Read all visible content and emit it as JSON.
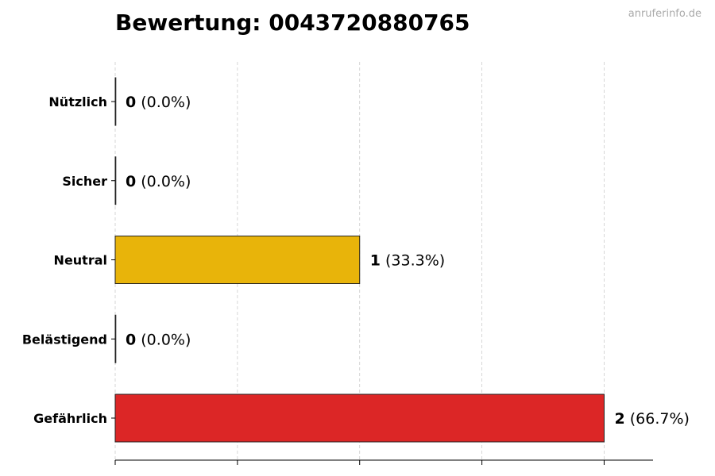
{
  "title": "Bewertung: 0043720880765",
  "watermark": "anruferinfo.de",
  "chart_data": {
    "type": "bar",
    "orientation": "horizontal",
    "title": "Bewertung: 0043720880765",
    "xlabel": "",
    "ylabel": "",
    "categories": [
      "Nützlich",
      "Sicher",
      "Neutral",
      "Belästigend",
      "Gefährlich"
    ],
    "values": [
      0,
      0,
      1,
      0,
      2
    ],
    "value_labels": [
      "0",
      "0",
      "1",
      "0",
      "2"
    ],
    "percent_labels": [
      "(0.0%)",
      "(0.0%)",
      "(33.3%)",
      "(0.0%)",
      "(66.7%)"
    ],
    "colors": [
      "#22a04b",
      "#2e7dd6",
      "#e8b40a",
      "#f07c1a",
      "#dc2626"
    ],
    "xlim": [
      0,
      2.2
    ],
    "xticks": [
      0,
      0.5,
      1,
      1.5,
      2
    ],
    "grid": "x-dashed",
    "legend": "none"
  }
}
